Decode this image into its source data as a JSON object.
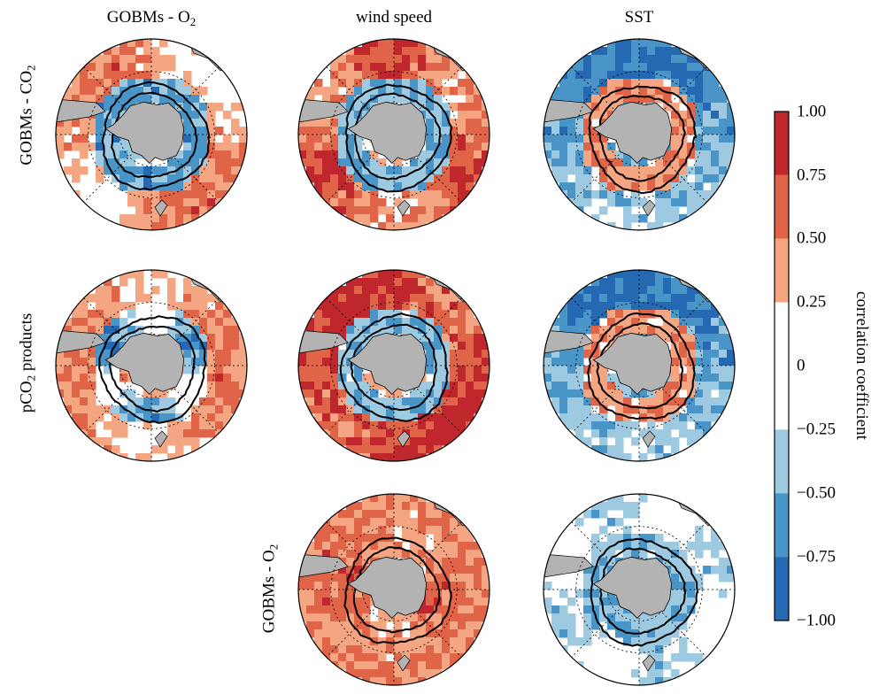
{
  "figure": {
    "columns": [
      {
        "main": "GOBMs - O",
        "sub": "2"
      },
      {
        "main": "wind speed",
        "sub": ""
      },
      {
        "main": "SST",
        "sub": ""
      }
    ],
    "rows": [
      {
        "pre": "GOBMs - CO",
        "sub": "2",
        "post": ""
      },
      {
        "pre": "pCO",
        "sub": "2",
        "post": " products"
      },
      {
        "pre": "GOBMs - O",
        "sub": "2",
        "post": ""
      }
    ],
    "panels": [
      {
        "row": 0,
        "col": 0,
        "pattern": "mixed-neg-inner"
      },
      {
        "row": 0,
        "col": 1,
        "pattern": "pos-outer-neg-inner"
      },
      {
        "row": 0,
        "col": 2,
        "pattern": "neg-outer-pos-inner"
      },
      {
        "row": 1,
        "col": 0,
        "pattern": "pos-outer-mixed"
      },
      {
        "row": 1,
        "col": 1,
        "pattern": "strong-pos-outer"
      },
      {
        "row": 1,
        "col": 2,
        "pattern": "neg-outer-pos-inner"
      },
      {
        "row": 2,
        "col": 1,
        "pattern": "strong-pos"
      },
      {
        "row": 2,
        "col": 2,
        "pattern": "weak-neg"
      }
    ]
  },
  "colorbar": {
    "label": "correlation coefficient",
    "ticks": [
      "1.00",
      "0.75",
      "0.50",
      "0.25",
      "0",
      "−0.25",
      "−0.50",
      "−0.75",
      "−1.00"
    ],
    "bins": [
      {
        "from": 0.75,
        "to": 1.0,
        "color": "#c0272d"
      },
      {
        "from": 0.5,
        "to": 0.75,
        "color": "#df6448"
      },
      {
        "from": 0.25,
        "to": 0.5,
        "color": "#f4a582"
      },
      {
        "from": -0.25,
        "to": 0.25,
        "color": "#ffffff"
      },
      {
        "from": -0.5,
        "to": -0.25,
        "color": "#9ecae1"
      },
      {
        "from": -0.75,
        "to": -0.5,
        "color": "#4a95c7"
      },
      {
        "from": -1.0,
        "to": -0.75,
        "color": "#2569b3"
      }
    ]
  }
}
